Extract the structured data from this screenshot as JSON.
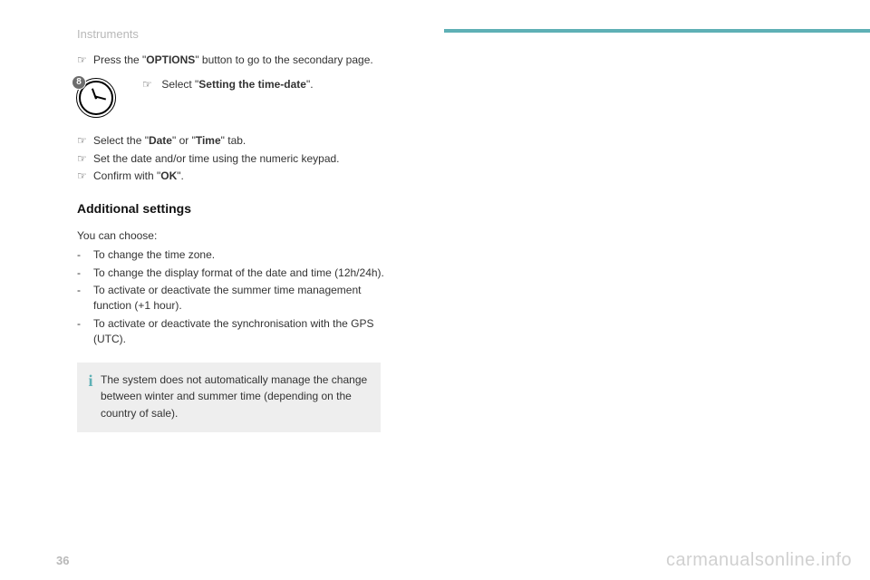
{
  "header": {
    "section": "Instruments"
  },
  "steps1": [
    {
      "pre": "Press the \"",
      "bold": "OPTIONS",
      "post": "\" button to go to the secondary page."
    }
  ],
  "iconStep": {
    "pre": "Select \"",
    "bold": "Setting the time-date",
    "post": "\"."
  },
  "iconBadge": "8",
  "steps2": [
    {
      "pre": "Select the \"",
      "bold": "Date",
      "mid": "\" or \"",
      "bold2": "Time",
      "post": "\" tab."
    },
    {
      "pre": "Set the date and/or time using the numeric keypad."
    },
    {
      "pre": "Confirm with \"",
      "bold": "OK",
      "post": "\"."
    }
  ],
  "subheading": "Additional settings",
  "intro": "You can choose:",
  "options": [
    "To change the time zone.",
    "To change the display format of the date and time (12h/24h).",
    "To activate or deactivate the summer time management function (+1 hour).",
    "To activate or deactivate the synchronisation with the GPS (UTC)."
  ],
  "infoBox": "The system does not automatically manage the change between winter and summer time (depending on the country of sale).",
  "pageNumber": "36",
  "watermark": "carmanualsonline.info",
  "bullets": {
    "arrow": "☞",
    "dash": "-"
  },
  "colors": {
    "accent": "#5eb0b5",
    "muted": "#b8b8b8",
    "boxbg": "#eeeeee"
  }
}
